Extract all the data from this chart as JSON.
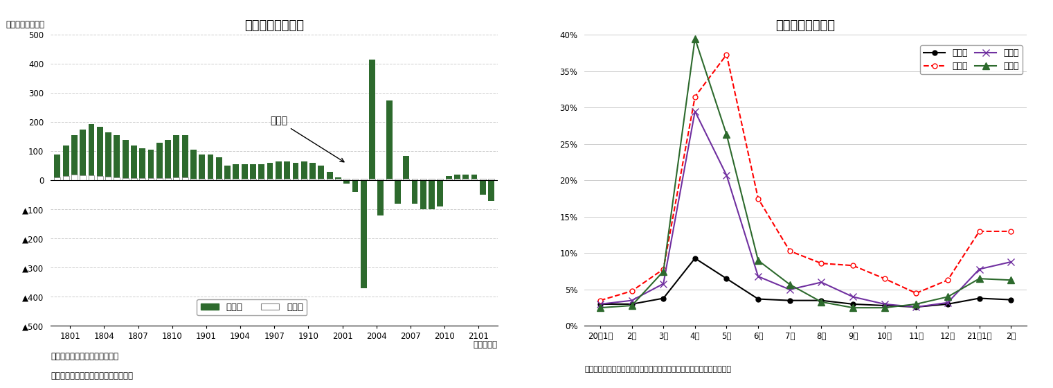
{
  "left_title": "就業者増減の内訳",
  "left_ylabel": "（前年差、万人）",
  "left_xlabel": "（年・月）",
  "left_note1": "（注）就業者＝従業者＋休業者",
  "left_note2": "（資料）総務省統計局「労働力調査」",
  "left_legend1": "従業者",
  "left_legend2": "休業者",
  "left_xtick_labels": [
    "1801",
    "1804",
    "1807",
    "1810",
    "1901",
    "1904",
    "1907",
    "1910",
    "2001",
    "2004",
    "2007",
    "2010",
    "2101"
  ],
  "jugyosha": [
    90,
    120,
    155,
    175,
    195,
    185,
    165,
    155,
    140,
    120,
    110,
    105,
    130,
    140,
    155,
    155,
    105,
    90,
    90,
    80,
    50,
    55,
    55,
    55,
    55,
    60,
    65,
    65,
    60,
    65,
    60,
    50,
    30,
    10,
    -10,
    -40,
    -370,
    415,
    -120,
    275,
    -80,
    85,
    -80,
    -100,
    -100,
    -90,
    15,
    20,
    20,
    20,
    -50,
    -70
  ],
  "kyugyosha": [
    10,
    15,
    20,
    18,
    18,
    15,
    12,
    10,
    8,
    7,
    7,
    7,
    8,
    8,
    10,
    10,
    5,
    5,
    5,
    5,
    5,
    5,
    5,
    5,
    5,
    5,
    5,
    5,
    5,
    5,
    5,
    5,
    5,
    5,
    5,
    5,
    5,
    5,
    5,
    5,
    5,
    5,
    5,
    5,
    5,
    5,
    5,
    5,
    5,
    5,
    5,
    5
  ],
  "right_title": "主な産業別休業率",
  "right_note": "（資料）総務省統計局「労働力調査」　（注）休業率＝休業者／就業者",
  "right_xtick_labels": [
    "20年1月",
    "2月",
    "3月",
    "4月",
    "5月",
    "6月",
    "7月",
    "8月",
    "9月",
    "10月",
    "11月",
    "12月",
    "21年1月",
    "2月"
  ],
  "zensangyo": [
    0.03,
    0.03,
    0.038,
    0.093,
    0.065,
    0.037,
    0.035,
    0.035,
    0.03,
    0.028,
    0.026,
    0.03,
    0.038,
    0.036
  ],
  "shukuhaku": [
    0.035,
    0.048,
    0.078,
    0.315,
    0.373,
    0.175,
    0.103,
    0.086,
    0.083,
    0.065,
    0.045,
    0.063,
    0.13,
    0.13
  ],
  "inshoku": [
    0.03,
    0.035,
    0.058,
    0.295,
    0.207,
    0.068,
    0.05,
    0.06,
    0.04,
    0.03,
    0.026,
    0.032,
    0.078,
    0.088
  ],
  "goraku": [
    0.025,
    0.028,
    0.075,
    0.395,
    0.263,
    0.09,
    0.057,
    0.033,
    0.025,
    0.025,
    0.03,
    0.04,
    0.065,
    0.063
  ],
  "legend_zensan": "全産業",
  "legend_shukuhaku": "宿泊業",
  "legend_inshoku": "飲食店",
  "legend_goraku": "娯楽業",
  "green_bar_color": "#2d6a2d",
  "annotation_text": "就業者"
}
